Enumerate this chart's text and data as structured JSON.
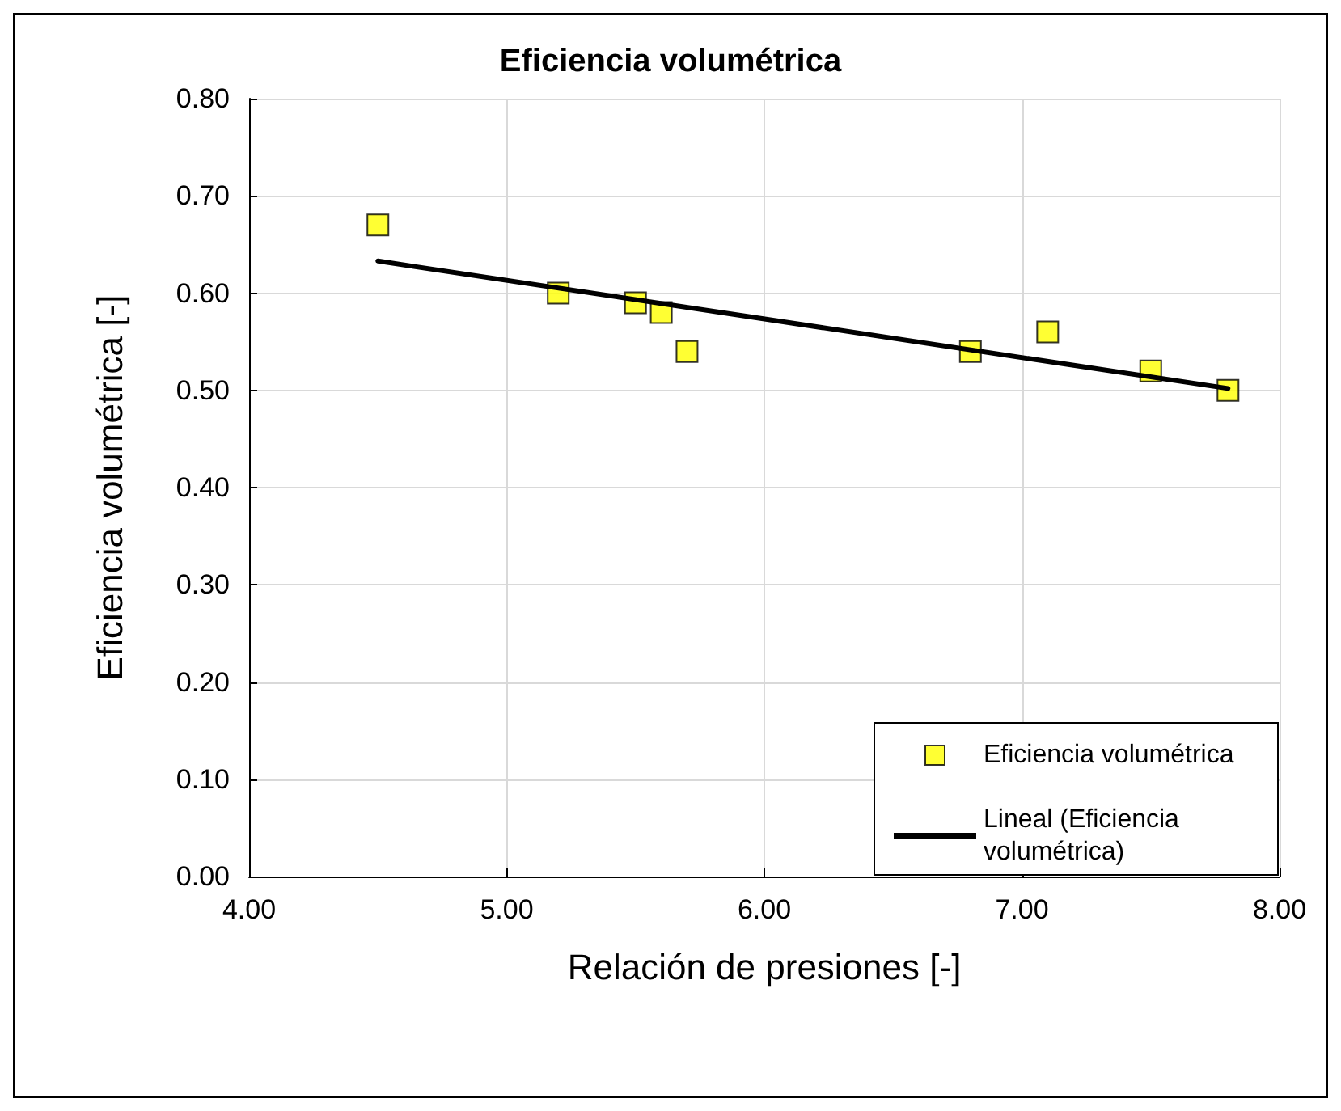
{
  "chart_data": {
    "type": "scatter",
    "title": "Eficiencia volumétrica",
    "xlabel": "Relación de presiones [-]",
    "ylabel": "Eficiencia volumétrica [-]",
    "marker": "square",
    "grid": true,
    "legend": "bottom right",
    "x": [
      4.5,
      5.2,
      5.5,
      5.6,
      5.7,
      6.8,
      7.1,
      7.5,
      7.8
    ],
    "series": [
      {
        "name": "Eficiencia volumétrica",
        "color": "#ffff00",
        "values": [
          0.67,
          0.6,
          0.59,
          0.58,
          0.54,
          0.54,
          0.56,
          0.52,
          0.5
        ]
      },
      {
        "name": "Lineal (Eficiencia volumétrica)",
        "type": "line",
        "marker": "none",
        "color": "#000000",
        "x": [
          4.5,
          7.8
        ],
        "values": [
          0.633,
          0.502
        ]
      }
    ],
    "xlim": [
      4,
      8
    ],
    "xticks": [
      {
        "value": 4,
        "label": "4.00"
      },
      {
        "value": 5,
        "label": "5.00"
      },
      {
        "value": 6,
        "label": "6.00"
      },
      {
        "value": 7,
        "label": "7.00"
      },
      {
        "value": 8,
        "label": "8.00"
      }
    ],
    "ylim": [
      0,
      0.8
    ],
    "yticks": [
      {
        "value": 0,
        "label": "0.00"
      },
      {
        "value": 0.1,
        "label": "0.10"
      },
      {
        "value": 0.2,
        "label": "0.20"
      },
      {
        "value": 0.3,
        "label": "0.30"
      },
      {
        "value": 0.4,
        "label": "0.40"
      },
      {
        "value": 0.5,
        "label": "0.50"
      },
      {
        "value": 0.6,
        "label": "0.60"
      },
      {
        "value": 0.7,
        "label": "0.70"
      },
      {
        "value": 0.8,
        "label": "0.80"
      }
    ]
  }
}
